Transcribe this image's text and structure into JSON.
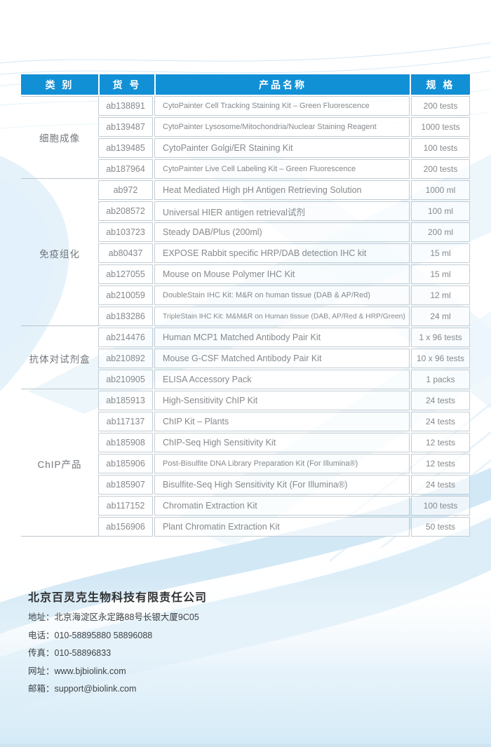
{
  "table": {
    "headers": {
      "category": "类 别",
      "cat_no": "货 号",
      "product": "产品名称",
      "spec": "规 格"
    },
    "groups": [
      {
        "category": "细胞成像",
        "rows": [
          {
            "no": "ab138891",
            "name": "CytoPainter Cell Tracking Staining Kit – Green Fluorescence",
            "spec": "200 tests"
          },
          {
            "no": "ab139487",
            "name": "CytoPainter Lysosome/Mitochondria/Nuclear Staining Reagent",
            "spec": "1000 tests"
          },
          {
            "no": "ab139485",
            "name": "CytoPainter Golgi/ER Staining Kit",
            "spec": "100 tests"
          },
          {
            "no": "ab187964",
            "name": "CytoPainter Live Cell Labeling Kit – Green Fluorescence",
            "spec": "200 tests"
          }
        ]
      },
      {
        "category": "免疫组化",
        "rows": [
          {
            "no": "ab972",
            "name": "Heat Mediated High pH Antigen Retrieving Solution",
            "spec": "1000 ml"
          },
          {
            "no": "ab208572",
            "name": "Universal HIER antigen retrieval试剂",
            "spec": "100 ml"
          },
          {
            "no": "ab103723",
            "name": "Steady DAB/Plus (200ml)",
            "spec": "200 ml"
          },
          {
            "no": "ab80437",
            "name": "EXPOSE Rabbit specific HRP/DAB detection IHC kit",
            "spec": "15 ml"
          },
          {
            "no": "ab127055",
            "name": "Mouse on Mouse Polymer IHC Kit",
            "spec": "15 ml"
          },
          {
            "no": "ab210059",
            "name": "DoubleStain IHC Kit: M&R on human tissue (DAB & AP/Red)",
            "spec": "12 ml"
          },
          {
            "no": "ab183286",
            "name": "TripleStain IHC Kit: M&M&R on Human tissue (DAB, AP/Red & HRP/Green)",
            "spec": "24 ml"
          }
        ]
      },
      {
        "category": "抗体对试剂盒",
        "rows": [
          {
            "no": "ab214476",
            "name": "Human MCP1 Matched Antibody Pair Kit",
            "spec": "1 x 96 tests"
          },
          {
            "no": "ab210892",
            "name": "Mouse G-CSF Matched Antibody Pair Kit",
            "spec": "10 x 96 tests"
          },
          {
            "no": "ab210905",
            "name": "ELISA Accessory Pack",
            "spec": "1 packs"
          }
        ]
      },
      {
        "category": "ChIP产品",
        "rows": [
          {
            "no": "ab185913",
            "name": "High-Sensitivity ChIP Kit",
            "spec": "24 tests"
          },
          {
            "no": "ab117137",
            "name": "ChIP Kit – Plants",
            "spec": "24 tests"
          },
          {
            "no": "ab185908",
            "name": "ChIP-Seq High Sensitivity Kit",
            "spec": "12 tests"
          },
          {
            "no": "ab185906",
            "name": "Post-Bisulfite DNA Library Preparation Kit (For Illumina®)",
            "spec": "12 tests"
          },
          {
            "no": "ab185907",
            "name": "Bisulfite-Seq High Sensitivity Kit (For Illumina®)",
            "spec": "24 tests"
          },
          {
            "no": "ab117152",
            "name": "Chromatin Extraction Kit",
            "spec": "100 tests"
          },
          {
            "no": "ab156906",
            "name": "Plant Chromatin Extraction Kit",
            "spec": "50 tests"
          }
        ]
      }
    ]
  },
  "footer": {
    "company": "北京百灵克生物科技有限责任公司",
    "lines": [
      {
        "label": "地址：",
        "value": "北京海淀区永定路88号长银大厦9C05"
      },
      {
        "label": "电话：",
        "value": "010-58895880 58896088"
      },
      {
        "label": "传真：",
        "value": "010-58896833"
      },
      {
        "label": "网址：",
        "value": "www.bjbiolink.com"
      },
      {
        "label": "邮箱：",
        "value": "support@biolink.com"
      }
    ]
  },
  "colors": {
    "header_blue": "#1190d6",
    "cell_border": "#c3cdd4",
    "body_text_gray": "#85898d",
    "category_gray": "#71767b",
    "footer_dark": "#303234",
    "decor_blue": "#d3e9f6"
  }
}
